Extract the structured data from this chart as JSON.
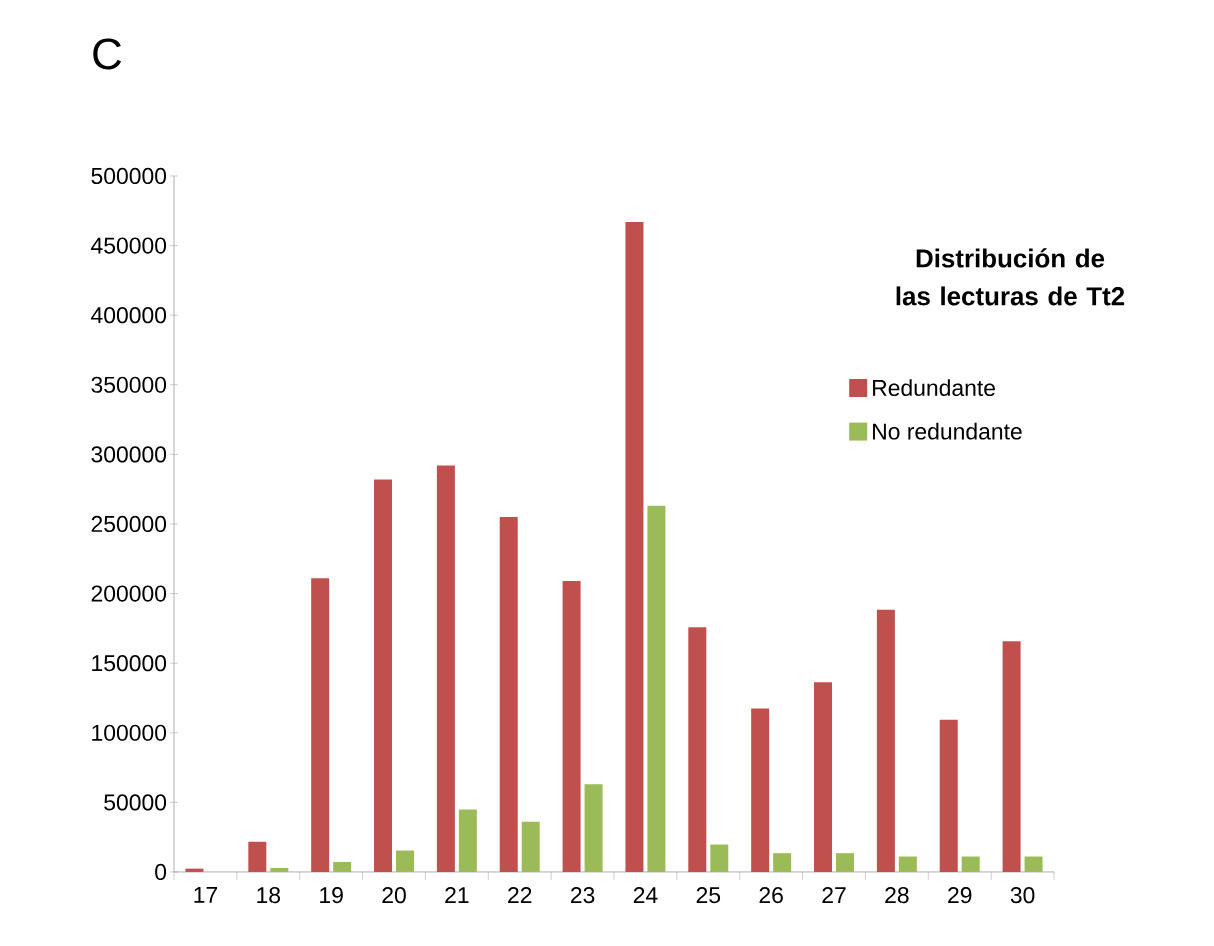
{
  "chart_data": {
    "type": "bar",
    "legend_title": "Distribución de  las lecturas de  Tt2",
    "annotations": [
      "C"
    ],
    "categories": [
      "17",
      "18",
      "19",
      "20",
      "21",
      "22",
      "23",
      "24",
      "25",
      "26",
      "27",
      "28",
      "29",
      "30"
    ],
    "series": [
      {
        "name": "Redundante",
        "color": "#c0504d",
        "values": [
          2400,
          21700,
          211000,
          282000,
          292000,
          255000,
          209000,
          467000,
          175800,
          117500,
          136300,
          188300,
          109300,
          165700
        ]
      },
      {
        "name": "No redundante",
        "color": "#9bbb59",
        "values": [
          0,
          2900,
          7200,
          15400,
          44800,
          36100,
          63100,
          263000,
          19700,
          13500,
          13500,
          11100,
          11100,
          11100
        ]
      }
    ],
    "ylim": [
      0,
      500000
    ],
    "yticks": [
      0,
      50000,
      100000,
      150000,
      200000,
      250000,
      300000,
      350000,
      400000,
      450000,
      500000
    ],
    "grid": false,
    "legend": "right"
  }
}
